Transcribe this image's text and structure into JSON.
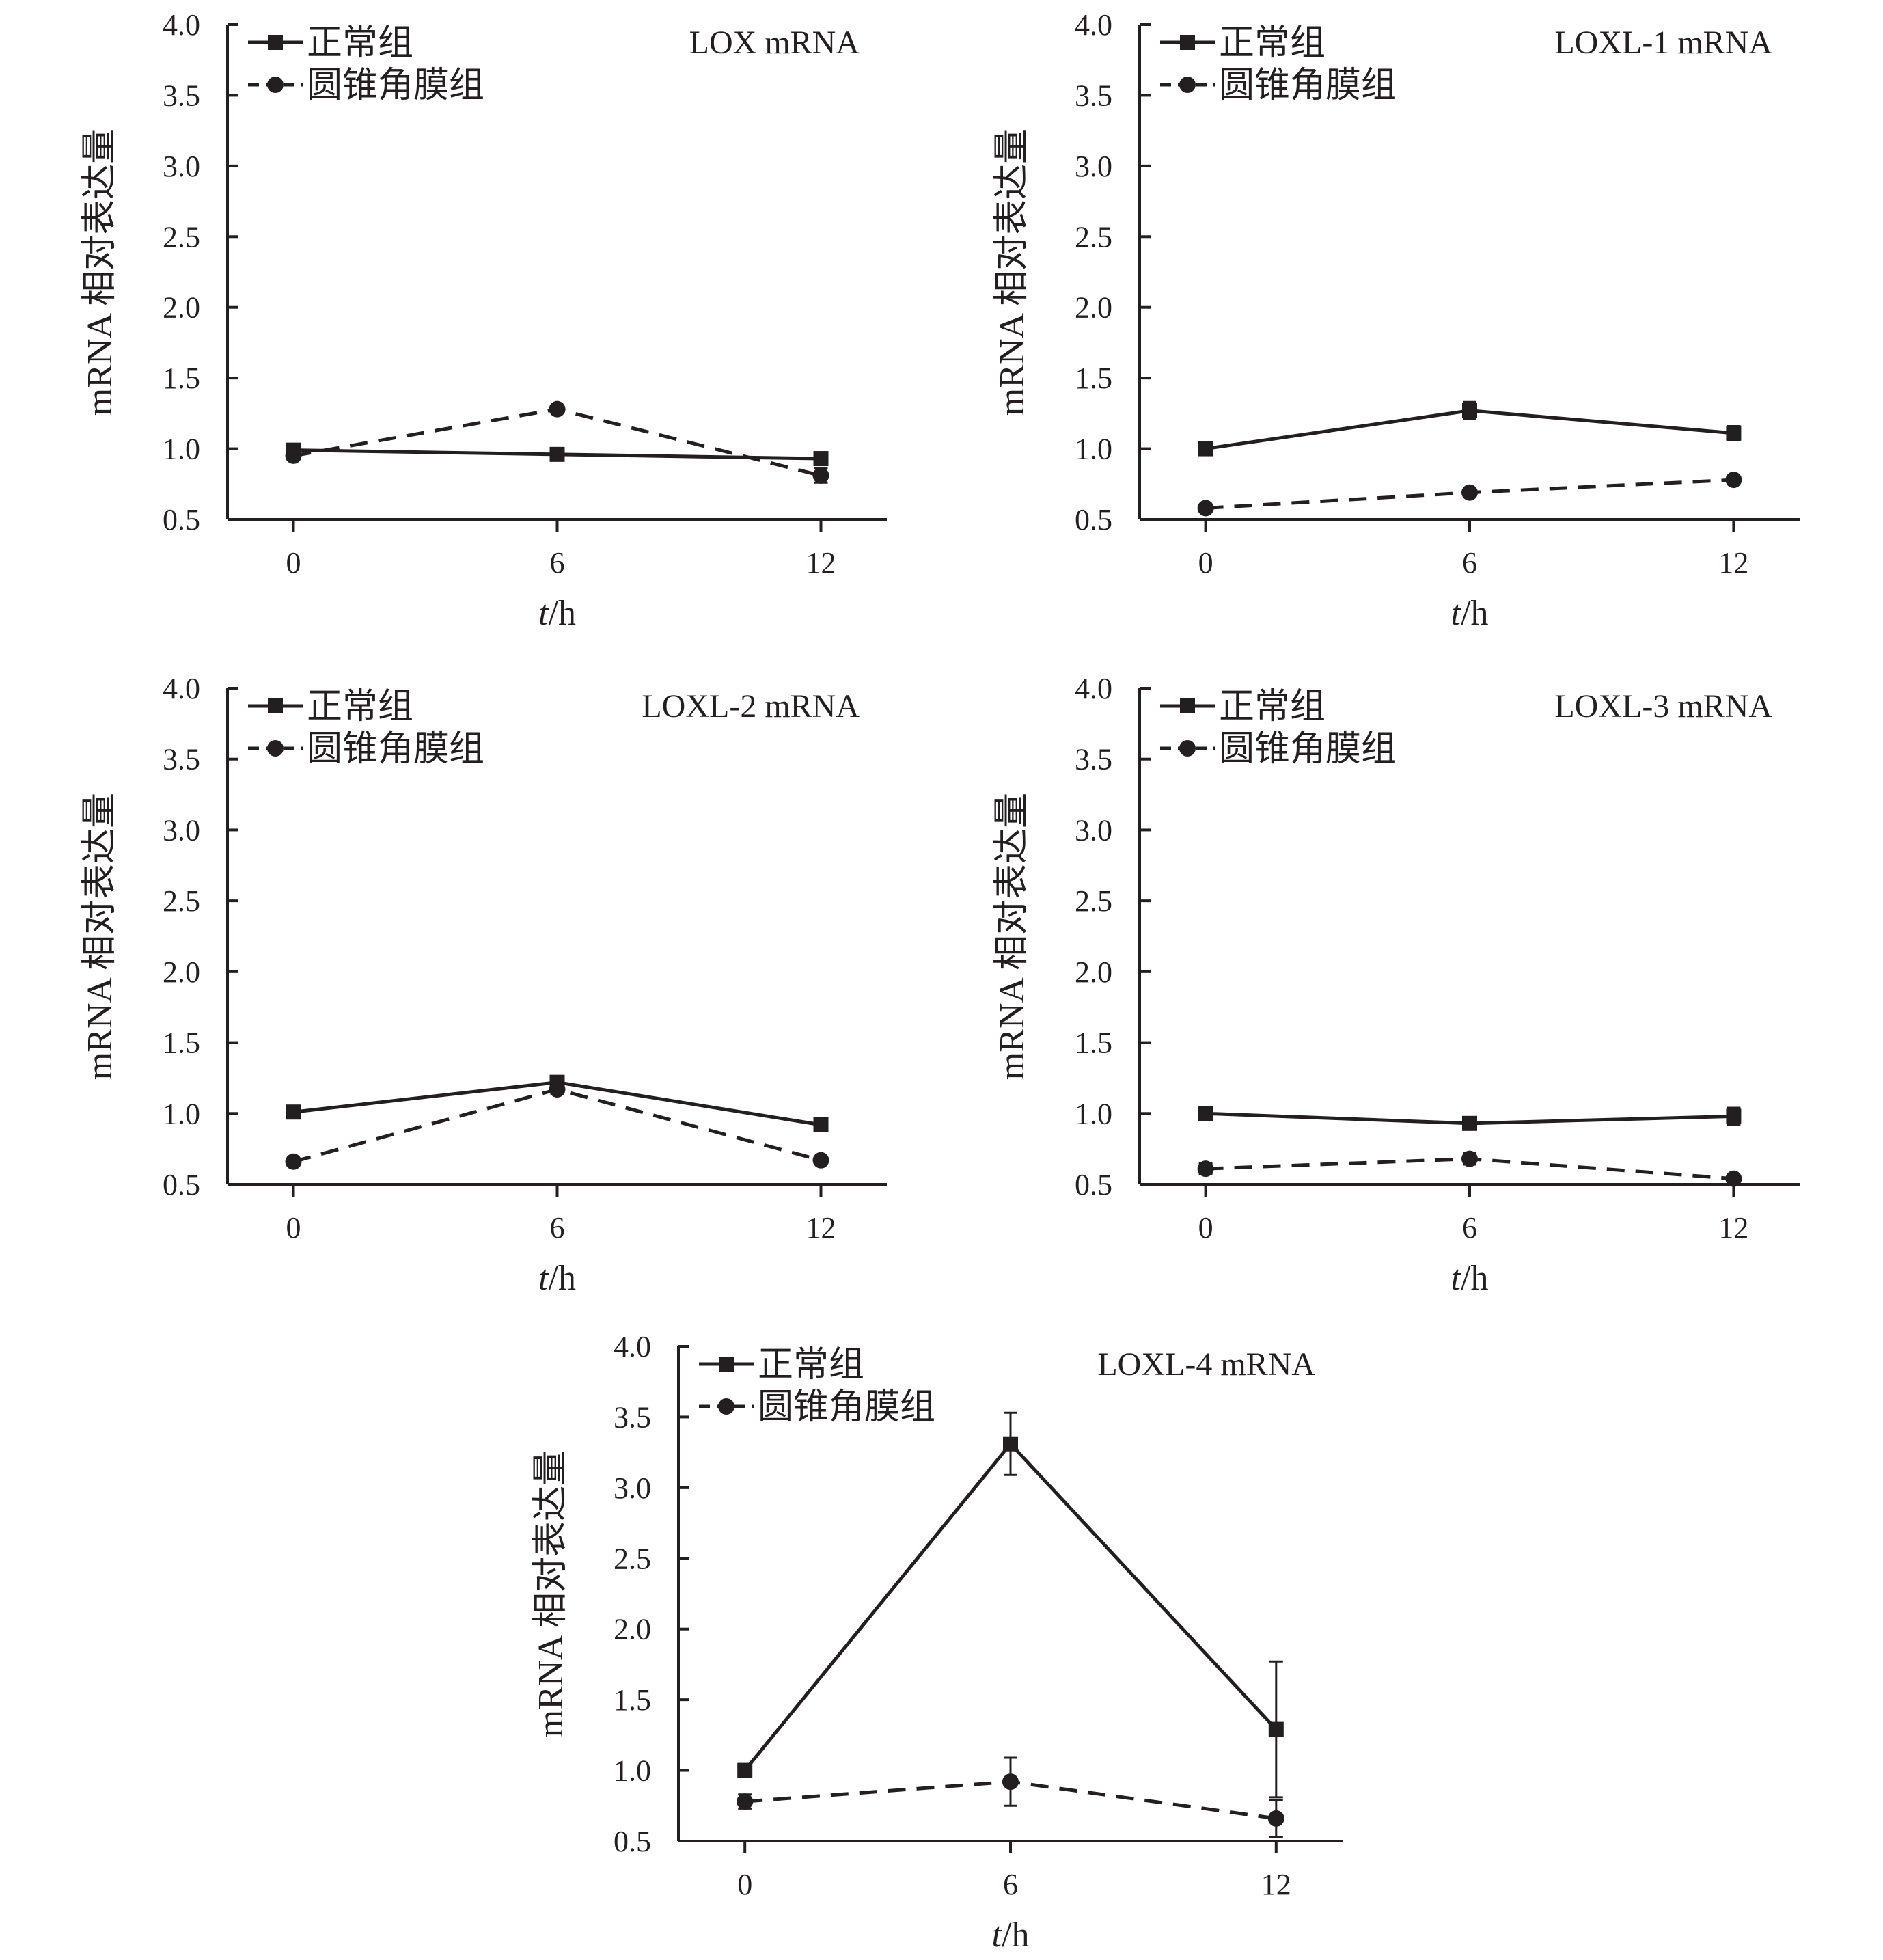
{
  "chart_data": [
    {
      "type": "line",
      "title": "LOX mRNA",
      "xlabel_var": "t",
      "xlabel_unit": "/h",
      "ylabel": "mRNA 相对表达量",
      "x": [
        0,
        6,
        12
      ],
      "x_tick_labels": [
        "0",
        "6",
        "12"
      ],
      "ylim": [
        0.5,
        4.0
      ],
      "y_ticks": [
        "0.5",
        "1.0",
        "1.5",
        "2.0",
        "2.5",
        "3.0",
        "3.5",
        "4.0"
      ],
      "legend_position": "top-left",
      "series": [
        {
          "name": "正常组",
          "marker": "square",
          "line": "solid",
          "values": [
            0.99,
            0.96,
            0.93
          ],
          "errors": [
            0.03,
            0.02,
            0.03
          ]
        },
        {
          "name": "圆锥角膜组",
          "marker": "circle",
          "line": "dashed",
          "values": [
            0.95,
            1.28,
            0.81
          ],
          "errors": [
            0.03,
            0.02,
            0.05
          ]
        }
      ]
    },
    {
      "type": "line",
      "title": "LOXL-1 mRNA",
      "xlabel_var": "t",
      "xlabel_unit": "/h",
      "ylabel": "mRNA 相对表达量",
      "x": [
        0,
        6,
        12
      ],
      "x_tick_labels": [
        "0",
        "6",
        "12"
      ],
      "ylim": [
        0.5,
        4.0
      ],
      "y_ticks": [
        "0.5",
        "1.0",
        "1.5",
        "2.0",
        "2.5",
        "3.0",
        "3.5",
        "4.0"
      ],
      "legend_position": "top-left",
      "series": [
        {
          "name": "正常组",
          "marker": "square",
          "line": "solid",
          "values": [
            1.0,
            1.27,
            1.11
          ],
          "errors": [
            0.02,
            0.06,
            0.05
          ]
        },
        {
          "name": "圆锥角膜组",
          "marker": "circle",
          "line": "dashed",
          "values": [
            0.58,
            0.69,
            0.78
          ],
          "errors": [
            0.01,
            0.02,
            0.02
          ]
        }
      ]
    },
    {
      "type": "line",
      "title": "LOXL-2 mRNA",
      "xlabel_var": "t",
      "xlabel_unit": "/h",
      "ylabel": "mRNA 相对表达量",
      "x": [
        0,
        6,
        12
      ],
      "x_tick_labels": [
        "0",
        "6",
        "12"
      ],
      "ylim": [
        0.5,
        4.0
      ],
      "y_ticks": [
        "0.5",
        "1.0",
        "1.5",
        "2.0",
        "2.5",
        "3.0",
        "3.5",
        "4.0"
      ],
      "legend_position": "top-left",
      "series": [
        {
          "name": "正常组",
          "marker": "square",
          "line": "solid",
          "values": [
            1.01,
            1.22,
            0.92
          ],
          "errors": [
            0.02,
            0.04,
            0.02
          ]
        },
        {
          "name": "圆锥角膜组",
          "marker": "circle",
          "line": "dashed",
          "values": [
            0.66,
            1.17,
            0.67
          ],
          "errors": [
            0.01,
            0.03,
            0.01
          ]
        }
      ]
    },
    {
      "type": "line",
      "title": "LOXL-3 mRNA",
      "xlabel_var": "t",
      "xlabel_unit": "/h",
      "ylabel": "mRNA 相对表达量",
      "x": [
        0,
        6,
        12
      ],
      "x_tick_labels": [
        "0",
        "6",
        "12"
      ],
      "ylim": [
        0.5,
        4.0
      ],
      "y_ticks": [
        "0.5",
        "1.0",
        "1.5",
        "2.0",
        "2.5",
        "3.0",
        "3.5",
        "4.0"
      ],
      "legend_position": "top-left",
      "series": [
        {
          "name": "正常组",
          "marker": "square",
          "line": "solid",
          "values": [
            1.0,
            0.93,
            0.98
          ],
          "errors": [
            0.02,
            0.02,
            0.06
          ]
        },
        {
          "name": "圆锥角膜组",
          "marker": "circle",
          "line": "dashed",
          "values": [
            0.61,
            0.68,
            0.54
          ],
          "errors": [
            0.04,
            0.04,
            0.01
          ]
        }
      ]
    },
    {
      "type": "line",
      "title": "LOXL-4 mRNA",
      "xlabel_var": "t",
      "xlabel_unit": "/h",
      "ylabel": "mRNA 相对表达量",
      "x": [
        0,
        6,
        12
      ],
      "x_tick_labels": [
        "0",
        "6",
        "12"
      ],
      "ylim": [
        0.5,
        4.0
      ],
      "y_ticks": [
        "0.5",
        "1.0",
        "1.5",
        "2.0",
        "2.5",
        "3.0",
        "3.5",
        "4.0"
      ],
      "legend_position": "top-left",
      "series": [
        {
          "name": "正常组",
          "marker": "square",
          "line": "solid",
          "values": [
            1.0,
            3.31,
            1.29
          ],
          "errors": [
            0.02,
            0.22,
            0.48
          ]
        },
        {
          "name": "圆锥角膜组",
          "marker": "circle",
          "line": "dashed",
          "values": [
            0.78,
            0.92,
            0.66
          ],
          "errors": [
            0.05,
            0.17,
            0.13
          ]
        }
      ]
    }
  ]
}
